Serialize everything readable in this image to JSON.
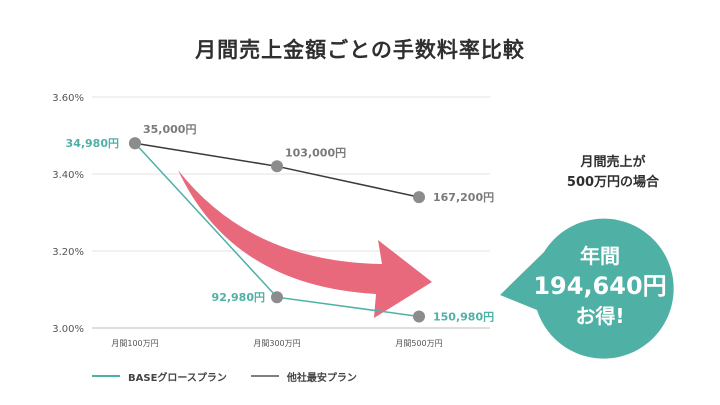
{
  "title": "月間売上金額ごとの手数料率比較",
  "note": {
    "line1": "月間売上が",
    "line2": "500万円の場合"
  },
  "bubble": {
    "line1": "年間",
    "line2": "194,640円",
    "line3": "お得!"
  },
  "colors": {
    "base": "#4fb0a5",
    "other": "#808080",
    "arrow": "#e8687c",
    "bubble": "#4fb0a5"
  },
  "chart_data": {
    "type": "line",
    "title": "月間売上金額ごとの手数料率比較",
    "categories": [
      "月間100万円",
      "月間300万円",
      "月間500万円"
    ],
    "y_ticks": [
      "3.00%",
      "3.20%",
      "3.40%",
      "3.60%"
    ],
    "ylim": [
      3.0,
      3.6
    ],
    "grid": true,
    "legend_position": "bottom-left",
    "series": [
      {
        "name": "BASEグロースプラン",
        "color": "#4fb0a5",
        "values": [
          3.48,
          3.08,
          3.03
        ],
        "labels": [
          "34,980円",
          "92,980円",
          "150,980円"
        ]
      },
      {
        "name": "他社最安プラン",
        "color": "#808080",
        "values": [
          3.48,
          3.42,
          3.34
        ],
        "labels": [
          "35,000円",
          "103,000円",
          "167,200円"
        ]
      }
    ]
  }
}
